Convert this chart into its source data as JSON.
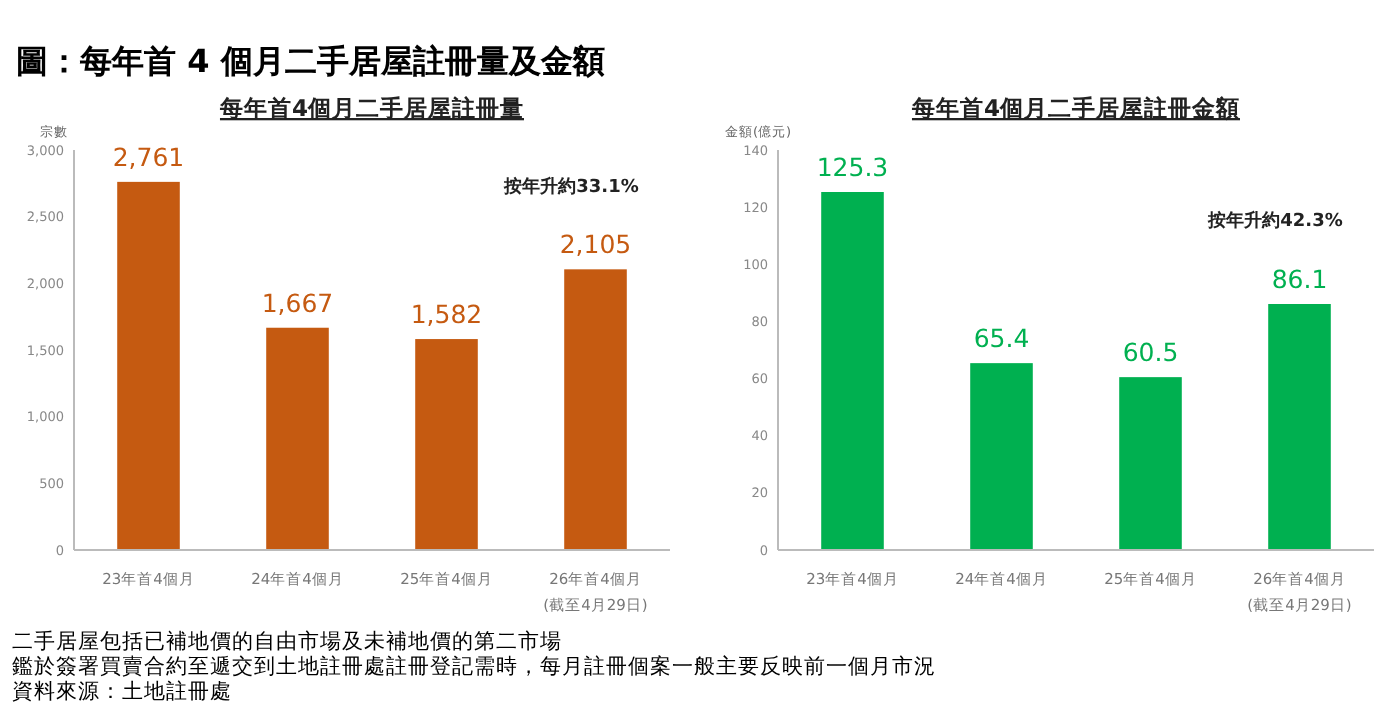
{
  "chart_data": [
    {
      "type": "bar",
      "title": "每年首4個月二手居屋註冊量",
      "ylabel": "宗數",
      "categories": [
        "23年首4個月",
        "24年首4個月",
        "25年首4個月",
        "26年首4個月\n(截至4月29日)"
      ],
      "series": [
        {
          "color": "#c55a11",
          "values": [
            2761,
            1667,
            1582,
            2105
          ]
        }
      ],
      "ylim": [
        0,
        3000
      ],
      "yticks": [
        {
          "value": 0,
          "label": "0"
        },
        {
          "value": 500,
          "label": "500"
        },
        {
          "value": 1000,
          "label": "1,000"
        },
        {
          "value": 1500,
          "label": "1,500"
        },
        {
          "value": 2000,
          "label": "2,000"
        },
        {
          "value": 2500,
          "label": "2,500"
        },
        {
          "value": 3000,
          "label": "3,000"
        }
      ],
      "value_labels": [
        "2,761",
        "1,667",
        "1,582",
        "2,105"
      ],
      "grid": false,
      "annotations": [
        "按年升約33.1%",
        "圖：每年首 4 個月二手居屋註冊量及金額",
        "二手居屋包括已補地價的自由市場及未補地價的第二市場",
        "鑑於簽署買賣合約至遞交到土地註冊處註冊登記需時，每月註冊個案一般主要反映前一個月市況",
        "資料來源：土地註冊處"
      ]
    },
    {
      "type": "bar",
      "title": "每年首4個月二手居屋註冊金額",
      "ylabel": "金額(億元)",
      "categories": [
        "23年首4個月",
        "24年首4個月",
        "25年首4個月",
        "26年首4個月\n(截至4月29日)"
      ],
      "series": [
        {
          "color": "#00b050",
          "values": [
            125.3,
            65.4,
            60.5,
            86.1
          ]
        }
      ],
      "ylim": [
        0,
        140
      ],
      "yticks": [
        0,
        20,
        40,
        60,
        80,
        100,
        120,
        140
      ],
      "data_labels": true,
      "grid": false,
      "annotations": [
        "按年升約42.3%"
      ]
    }
  ]
}
